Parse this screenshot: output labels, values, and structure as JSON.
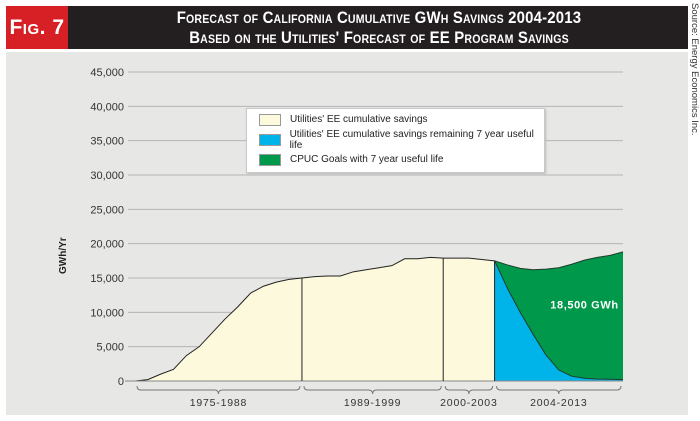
{
  "figure_label": "Fig. 7",
  "title_line1": "Forecast of California Cumulative GWh Savings 2004-2013",
  "title_line2": "Based on the Utilities' Forecast of EE Program Savings",
  "source": "Source: Energy Economics Inc.",
  "colors": {
    "header": "#231f20",
    "figure_label_bg": "#d71f26",
    "utilities": "#fdf9dc",
    "remaining": "#00b4ea",
    "cpuc": "#00984a",
    "panel": "#e7e7e5"
  },
  "chart_data": {
    "type": "area",
    "ylabel": "GWh/Yr",
    "ylim": [
      0,
      45000
    ],
    "yticks": [
      0,
      5000,
      10000,
      15000,
      20000,
      25000,
      30000,
      35000,
      40000,
      45000
    ],
    "ytick_labels": [
      "0",
      "5,000",
      "10,000",
      "15,000",
      "20,000",
      "25,000",
      "30,000",
      "35,000",
      "40,000",
      "45,000"
    ],
    "grid": true,
    "legend_placement": "top-center",
    "legend": [
      {
        "label": "Utilities' EE cumulative savings",
        "color": "#fdf9dc"
      },
      {
        "label": "Utilities' EE cumulative savings remaining 7 year useful life",
        "color": "#00b4ea"
      },
      {
        "label": "CPUC Goals with 7 year useful life",
        "color": "#00984a"
      }
    ],
    "segments": [
      {
        "label": "1975-1988",
        "start": 1975,
        "end": 1988
      },
      {
        "label": "1989-1999",
        "start": 1988,
        "end": 1999
      },
      {
        "label": "2000-2003",
        "start": 1999,
        "end": 2003
      },
      {
        "label": "2004-2013",
        "start": 2003,
        "end": 2013
      }
    ],
    "annotation": "18,500 GWh",
    "utilities_cumulative": {
      "x": [
        1975,
        1976,
        1977,
        1978,
        1979,
        1980,
        1981,
        1982,
        1983,
        1984,
        1985,
        1986,
        1987,
        1988,
        1989,
        1990,
        1991,
        1992,
        1993,
        1994,
        1995,
        1996,
        1997,
        1998,
        1999,
        2000,
        2001,
        2002,
        2003
      ],
      "y": [
        0,
        200,
        1000,
        1700,
        3700,
        5000,
        7000,
        9000,
        10800,
        12800,
        13800,
        14400,
        14800,
        15000,
        15200,
        15300,
        15300,
        15900,
        16200,
        16500,
        16800,
        17800,
        17800,
        18000,
        17900,
        17900,
        17900,
        17700,
        17500
      ]
    },
    "cpuc_goals": {
      "x": [
        2003,
        2004,
        2005,
        2006,
        2007,
        2008,
        2009,
        2010,
        2011,
        2012,
        2013
      ],
      "y": [
        17500,
        16900,
        16400,
        16200,
        16300,
        16500,
        17000,
        17600,
        18000,
        18300,
        18800
      ]
    },
    "utilities_remaining": {
      "x": [
        2003,
        2004,
        2005,
        2006,
        2007,
        2008,
        2009,
        2010,
        2011,
        2012,
        2013
      ],
      "y": [
        17500,
        13500,
        10000,
        6800,
        3800,
        1600,
        700,
        400,
        300,
        250,
        200
      ]
    }
  }
}
